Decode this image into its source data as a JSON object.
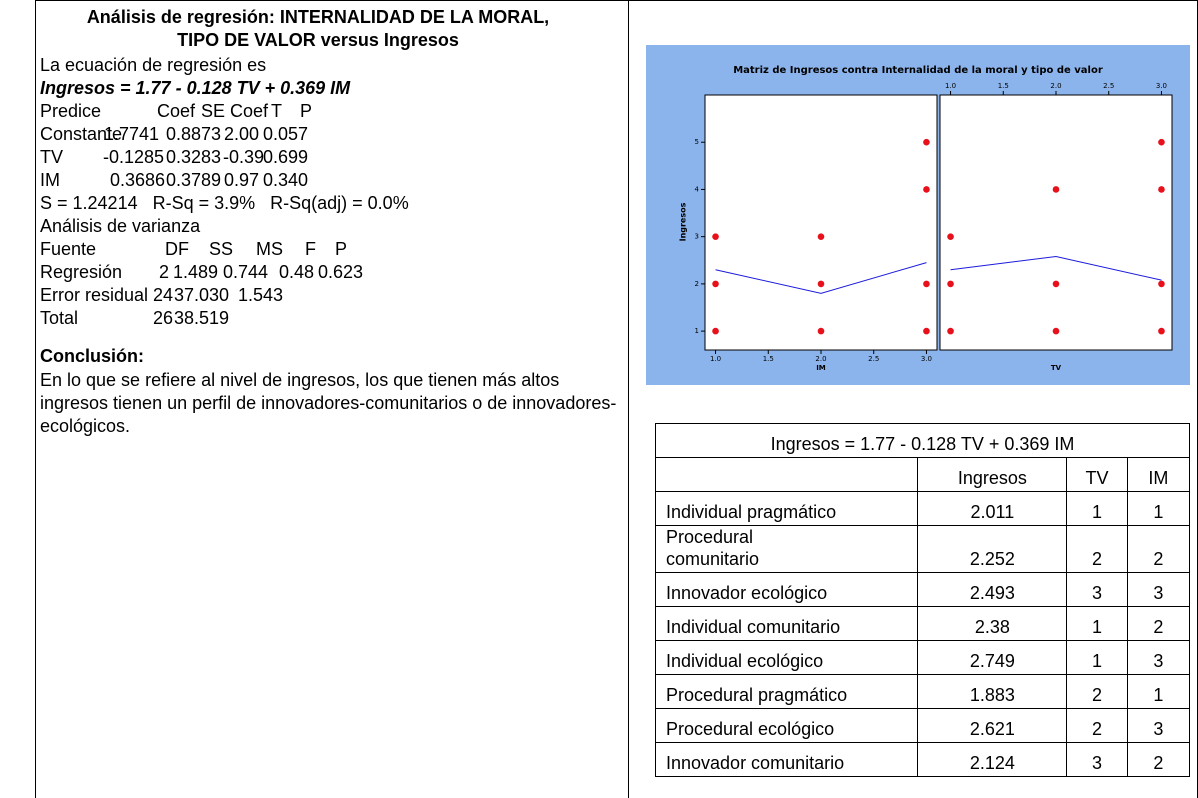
{
  "report": {
    "title_lines": [
      "Análisis de regresión: INTERNALIDAD DE LA MORAL,",
      "TIPO DE VALOR versus Ingresos"
    ],
    "equation_intro": "La ecuación de regresión es",
    "equation": "Ingresos = 1.77 - 0.128 TV + 0.369 IM",
    "coef_rows": [
      [
        "Predice",
        "Coef",
        "SE Coef",
        "T",
        "P"
      ],
      [
        "Constante",
        "1.7741",
        "0.8873",
        "2.00",
        "0.057"
      ],
      [
        "TV",
        "-0.1285",
        "0.3283",
        "-0.39",
        "0.699"
      ],
      [
        "IM",
        "0.3686",
        "0.3789",
        "0.97",
        "0.340"
      ]
    ],
    "fit_summary": "S = 1.24214   R-Sq = 3.9%   R-Sq(adj) = 0.0%",
    "anova_title": "Análisis de varianza",
    "anova_rows": [
      [
        "Fuente",
        "DF",
        "SS",
        "MS",
        "F",
        "P"
      ],
      [
        "Regresión",
        "2",
        "1.489",
        "0.744",
        "0.48",
        "0.623"
      ],
      [
        "Error residual",
        "24",
        "37.030",
        "1.543"
      ],
      [
        "Total",
        "26",
        "38.519"
      ]
    ],
    "conclusion_title": "Conclusión:",
    "conclusion": "En lo que se refiere al nivel de ingresos, los que tienen más altos ingresos tienen un perfil de innovadores-comunitarios o de innovadores-ecológicos."
  },
  "chart": {
    "type": "scatter",
    "title": "Matriz de Ingresos contra  Internalidad de la moral y tipo de valor",
    "ylabel": "Ingresos",
    "ylim": [
      0.6,
      6.0
    ],
    "yticks": [
      1,
      2,
      3,
      4,
      5
    ],
    "background": "#8cb4ec",
    "point_color": "#e8101a",
    "line_color": "#1a1adc",
    "panels": [
      {
        "xlabel": "IM",
        "xtick_side": "bottom",
        "xlim": [
          0.9,
          3.1
        ],
        "xticks": [
          {
            "value": 1,
            "label": "1.0"
          },
          1.5,
          {
            "value": 2,
            "label": "2.0"
          },
          2.5,
          {
            "value": 3,
            "label": "3.0"
          }
        ],
        "x": [
          1,
          1,
          1,
          2,
          2,
          2,
          3,
          3,
          3,
          3
        ],
        "y": [
          1,
          2,
          3,
          1,
          2,
          3,
          1,
          2,
          4,
          5
        ],
        "fit_x": [
          1,
          2,
          3
        ],
        "fit_y": [
          2.3,
          1.8,
          2.45
        ]
      },
      {
        "xlabel": "TV",
        "xtick_side": "top",
        "xlim": [
          0.9,
          3.1
        ],
        "xticks": [
          {
            "value": 1,
            "label": "1.0"
          },
          1.5,
          {
            "value": 2,
            "label": "2.0"
          },
          2.5,
          {
            "value": 3,
            "label": "3.0"
          }
        ],
        "x": [
          1,
          1,
          1,
          2,
          2,
          2,
          3,
          3,
          3,
          3
        ],
        "y": [
          1,
          2,
          3,
          1,
          2,
          4,
          1,
          2,
          4,
          5
        ],
        "fit_x": [
          1,
          2,
          3
        ],
        "fit_y": [
          2.3,
          2.58,
          2.08
        ]
      }
    ]
  },
  "table": {
    "caption": "Ingresos = 1.77 - 0.128 TV + 0.369 IM",
    "header": [
      "Ingresos",
      "TV",
      "IM"
    ],
    "rows": [
      [
        "Individual pragmático",
        "2.011",
        "1",
        "1"
      ],
      [
        "Procedural\ncomunitario",
        "2.252",
        "2",
        "2"
      ],
      [
        "Innovador ecológico",
        "2.493",
        "3",
        "3"
      ],
      [
        "Individual comunitario",
        "2.38",
        "1",
        "2"
      ],
      [
        "Individual ecológico",
        "2.749",
        "1",
        "3"
      ],
      [
        "Procedural pragmático",
        "1.883",
        "2",
        "1"
      ],
      [
        "Procedural ecológico",
        "2.621",
        "2",
        "3"
      ],
      [
        "Innovador comunitario",
        "2.124",
        "3",
        "2"
      ]
    ]
  }
}
